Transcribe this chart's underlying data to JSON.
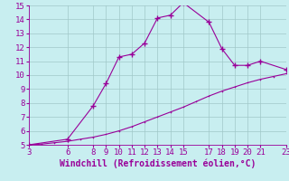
{
  "x_ticks": [
    3,
    6,
    8,
    9,
    10,
    11,
    12,
    13,
    14,
    15,
    17,
    18,
    19,
    20,
    21,
    23
  ],
  "y_ticks": [
    5,
    6,
    7,
    8,
    9,
    10,
    11,
    12,
    13,
    14,
    15
  ],
  "xlim": [
    3,
    23
  ],
  "ylim": [
    5,
    15
  ],
  "line1_x": [
    3,
    4,
    5,
    6,
    7,
    8,
    9,
    10,
    11,
    12,
    13,
    14,
    15,
    16,
    17,
    18,
    19,
    20,
    21,
    22,
    23
  ],
  "line1_y": [
    5.0,
    5.05,
    5.15,
    5.25,
    5.4,
    5.55,
    5.75,
    6.0,
    6.3,
    6.65,
    7.0,
    7.35,
    7.7,
    8.1,
    8.5,
    8.85,
    9.15,
    9.45,
    9.7,
    9.9,
    10.1
  ],
  "line2_x": [
    3,
    6,
    8,
    9,
    10,
    11,
    12,
    13,
    14,
    15,
    17,
    18,
    19,
    20,
    21,
    23
  ],
  "line2_y": [
    5.0,
    5.4,
    7.8,
    9.4,
    11.3,
    11.5,
    12.3,
    14.1,
    14.3,
    15.2,
    13.8,
    11.9,
    10.7,
    10.7,
    11.0,
    10.4
  ],
  "line_color": "#990099",
  "bg_color": "#c8eef0",
  "grid_color": "#a0c8c8",
  "xlabel": "Windchill (Refroidissement éolien,°C)",
  "xlabel_color": "#990099",
  "xlabel_fontsize": 7,
  "tick_color": "#990099",
  "tick_fontsize": 6.5,
  "marker": "+",
  "marker_size": 4,
  "line_width": 0.8,
  "dpi": 100,
  "figsize": [
    3.2,
    2.0
  ]
}
